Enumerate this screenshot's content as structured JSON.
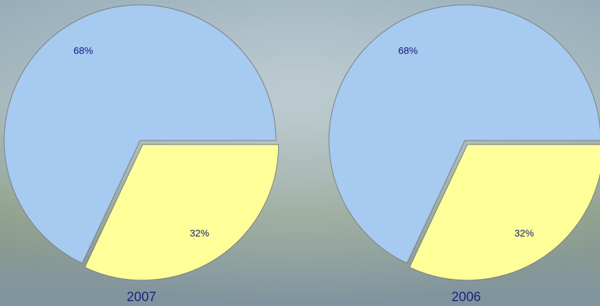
{
  "chart_data": [
    {
      "type": "pie",
      "title": "2007",
      "values": [
        68,
        32
      ],
      "value_labels": [
        "68%",
        "32%"
      ],
      "colors": [
        "#a6caf0",
        "#ffff99"
      ],
      "explode": [
        false,
        true
      ]
    },
    {
      "type": "pie",
      "title": "2006",
      "values": [
        68,
        32
      ],
      "value_labels": [
        "68%",
        "32%"
      ],
      "colors": [
        "#a6caf0",
        "#ffff99"
      ],
      "explode": [
        false,
        true
      ]
    }
  ]
}
